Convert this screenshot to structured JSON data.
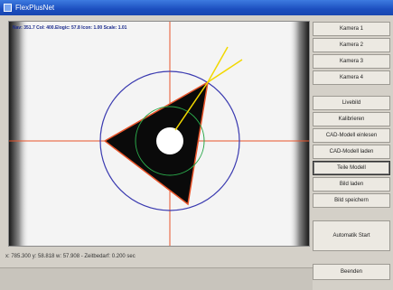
{
  "window": {
    "title": "FlexPlusNet"
  },
  "viewport": {
    "readout": "Nav: 351.7 Col: 400.Elogic: 57.8 Icon: 1.00 Scale: 1.01"
  },
  "status": {
    "text": "x: 785.300 y: 58.818 w: 57.908 - Zeitbedarf: 0.200 sec"
  },
  "buttons": {
    "kamera1": "Kamera 1",
    "kamera2": "Kamera 2",
    "kamera3": "Kamera 3",
    "kamera4": "Kamera 4",
    "livebild": "Livebild",
    "kalibrieren": "Kalibrieren",
    "cad_einlesen": "CAD-Modell einlesen",
    "cad_laden": "CAD-Modell laden",
    "teile_modell": "Teile Modell",
    "bild_laden": "Bild laden",
    "bild_speichern": "Bild speichern",
    "automatik_start": "Automatik Start",
    "beenden": "Beenden"
  },
  "colors": {
    "crosshair": "#e8542a",
    "outer_circle": "#3a3ab0",
    "inner_circle": "#2aa84a",
    "shape_fill": "#0a0a0a",
    "shape_outline": "#e8542a",
    "rays": "#f2d800",
    "ring": "#ffffff"
  },
  "icons": {
    "window": "app-icon"
  }
}
